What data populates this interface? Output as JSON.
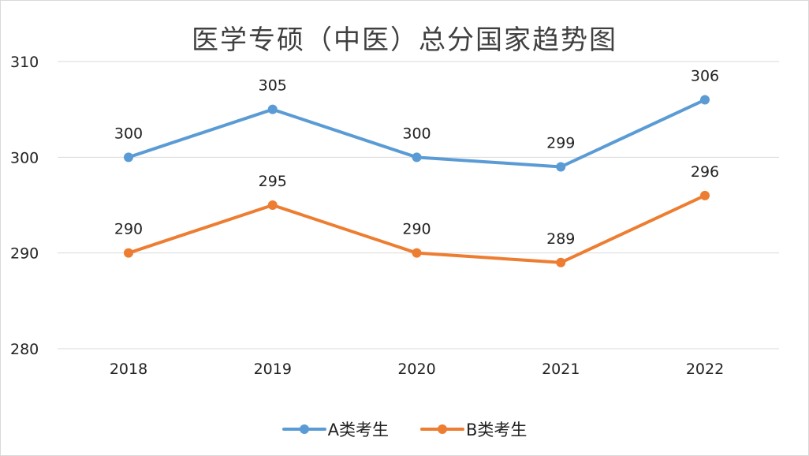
{
  "chart_data": {
    "type": "line",
    "title": "医学专硕（中医）总分国家趋势图",
    "categories": [
      "2018",
      "2019",
      "2020",
      "2021",
      "2022"
    ],
    "series": [
      {
        "name": "A类考生",
        "color": "#5b9bd5",
        "values": [
          300,
          305,
          300,
          299,
          306
        ]
      },
      {
        "name": "B类考生",
        "color": "#ed7d31",
        "values": [
          290,
          295,
          290,
          289,
          296
        ]
      }
    ],
    "yticks": [
      280,
      290,
      300,
      310
    ],
    "ylim": [
      280,
      310
    ],
    "grid": true,
    "legend": "bottom",
    "xlabel": "",
    "ylabel": ""
  }
}
